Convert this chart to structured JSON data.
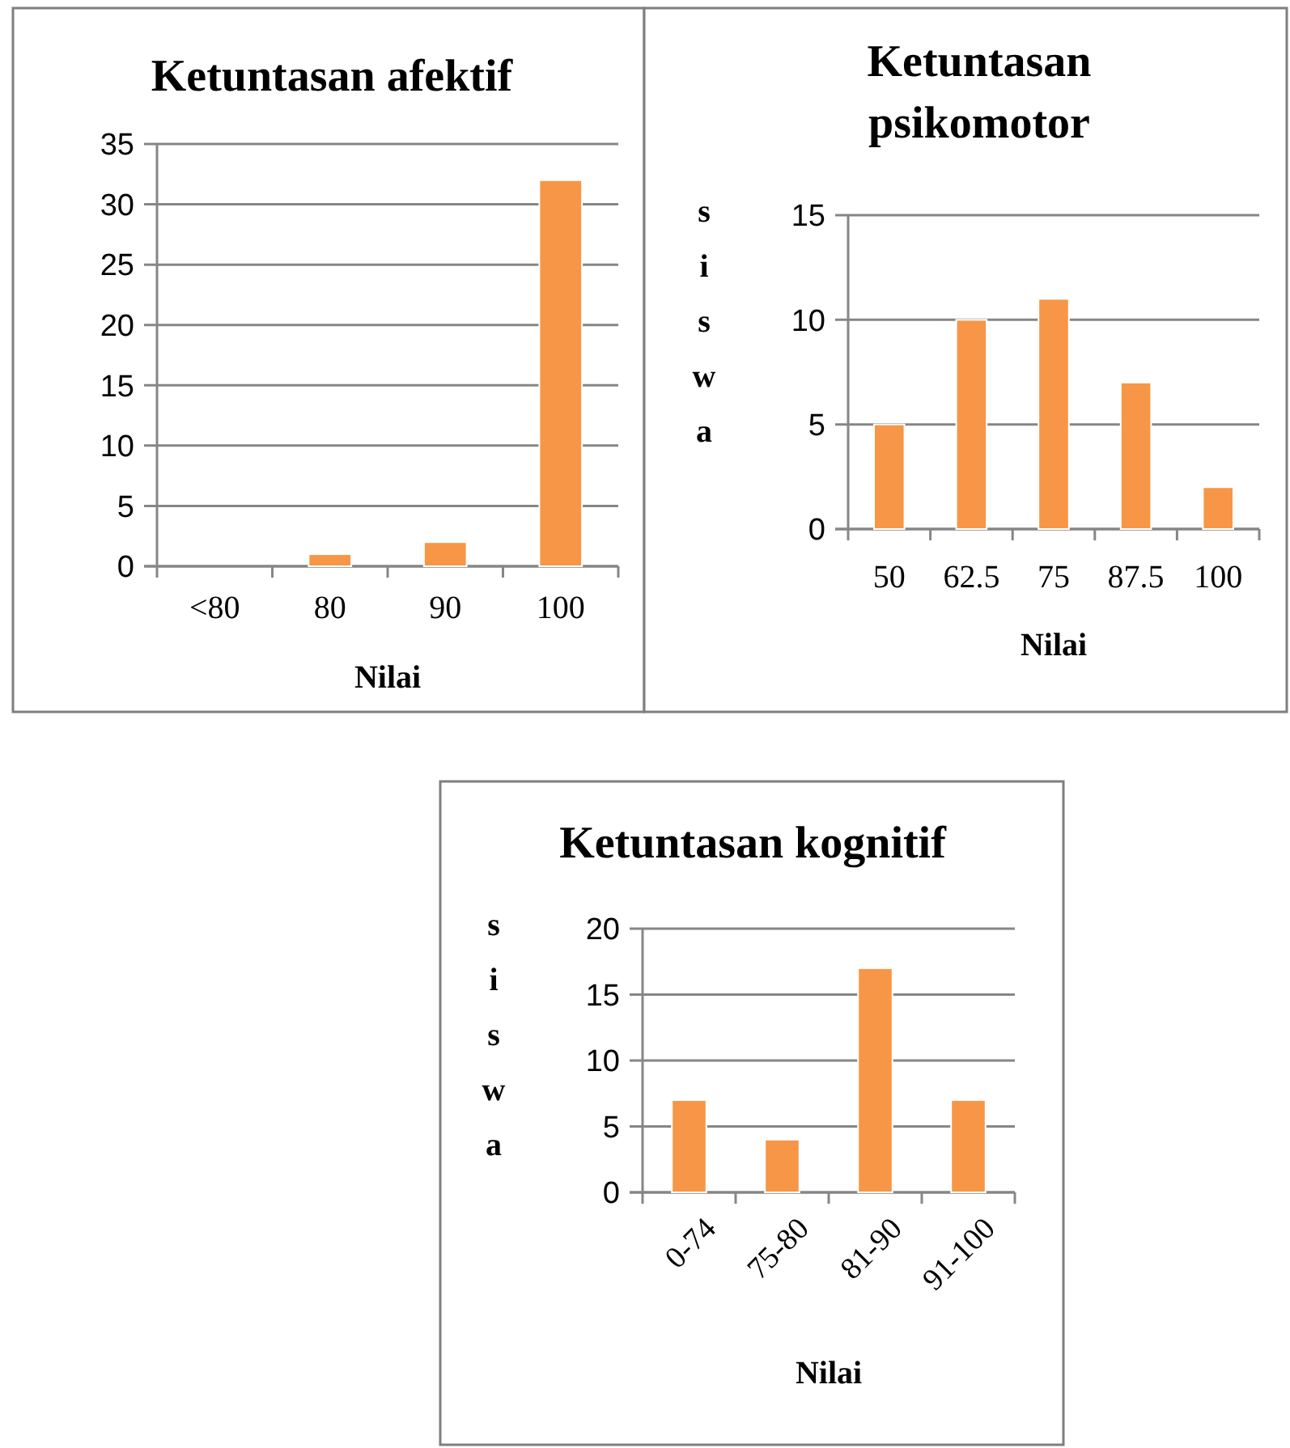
{
  "chart_data": [
    {
      "type": "bar",
      "title": "Ketuntasan afektif",
      "xlabel": "Nilai",
      "categories": [
        "<80",
        "80",
        "90",
        "100"
      ],
      "values": [
        0,
        1,
        2,
        32
      ],
      "color": "#f79646",
      "ylim": [
        0,
        35
      ],
      "yticks": [
        0,
        5,
        10,
        15,
        20,
        25,
        30,
        35
      ],
      "grid": "y"
    },
    {
      "type": "bar",
      "title": "Ketuntasan psikomotor",
      "xlabel": "Nilai",
      "ylabel": "siswa",
      "categories": [
        "50",
        "62.5",
        "75",
        "87.5",
        "100"
      ],
      "values": [
        5,
        10,
        11,
        7,
        2
      ],
      "color": "#f79646",
      "ylim": [
        0,
        15
      ],
      "yticks": [
        0,
        5,
        10,
        15
      ],
      "grid": "y"
    },
    {
      "type": "bar",
      "title": "Ketuntasan kognitif",
      "xlabel": "Nilai",
      "ylabel": "siswa",
      "categories": [
        "0-74",
        "75-80",
        "81-90",
        "91-100"
      ],
      "values": [
        7,
        4,
        17,
        7
      ],
      "color": "#f79646",
      "ylim": [
        0,
        20
      ],
      "yticks": [
        0,
        5,
        10,
        15,
        20
      ],
      "grid": "y"
    }
  ]
}
